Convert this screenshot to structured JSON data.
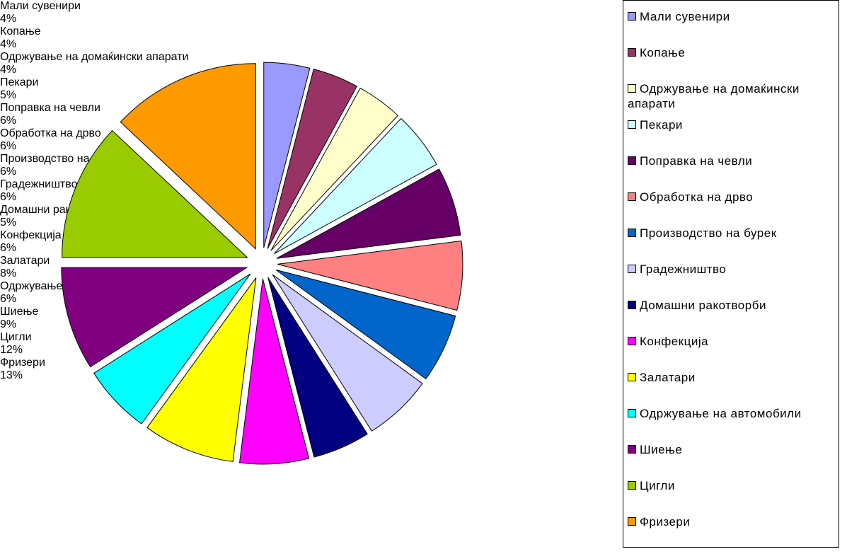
{
  "chart_data": {
    "type": "pie",
    "categories": [
      "Мали сувенири",
      "Копање",
      "Одржување на домаќински апарати",
      "Пекари",
      "Поправка на чевли",
      "Обработка на дрво",
      "Производство на бурек",
      "Градежништво",
      "Домашни ракотворби",
      "Конфекција",
      "Залатари",
      "Одржување на автомобили",
      "Шиење",
      "Цигли",
      "Фризери"
    ],
    "values": [
      4,
      4,
      4,
      5,
      6,
      6,
      6,
      6,
      5,
      6,
      8,
      6,
      9,
      12,
      13
    ],
    "value_labels": [
      "4%",
      "4%",
      "4%",
      "5%",
      "6%",
      "6%",
      "6%",
      "6%",
      "5%",
      "6%",
      "8%",
      "6%",
      "9%",
      "12%",
      "13%"
    ],
    "colors": [
      "#9999ff",
      "#993366",
      "#ffffcc",
      "#ccffff",
      "#660066",
      "#ff8080",
      "#0066cc",
      "#ccccff",
      "#000080",
      "#ff00ff",
      "#ffff00",
      "#00ffff",
      "#800080",
      "#99cc00",
      "#ff9900"
    ],
    "legend": "right"
  }
}
